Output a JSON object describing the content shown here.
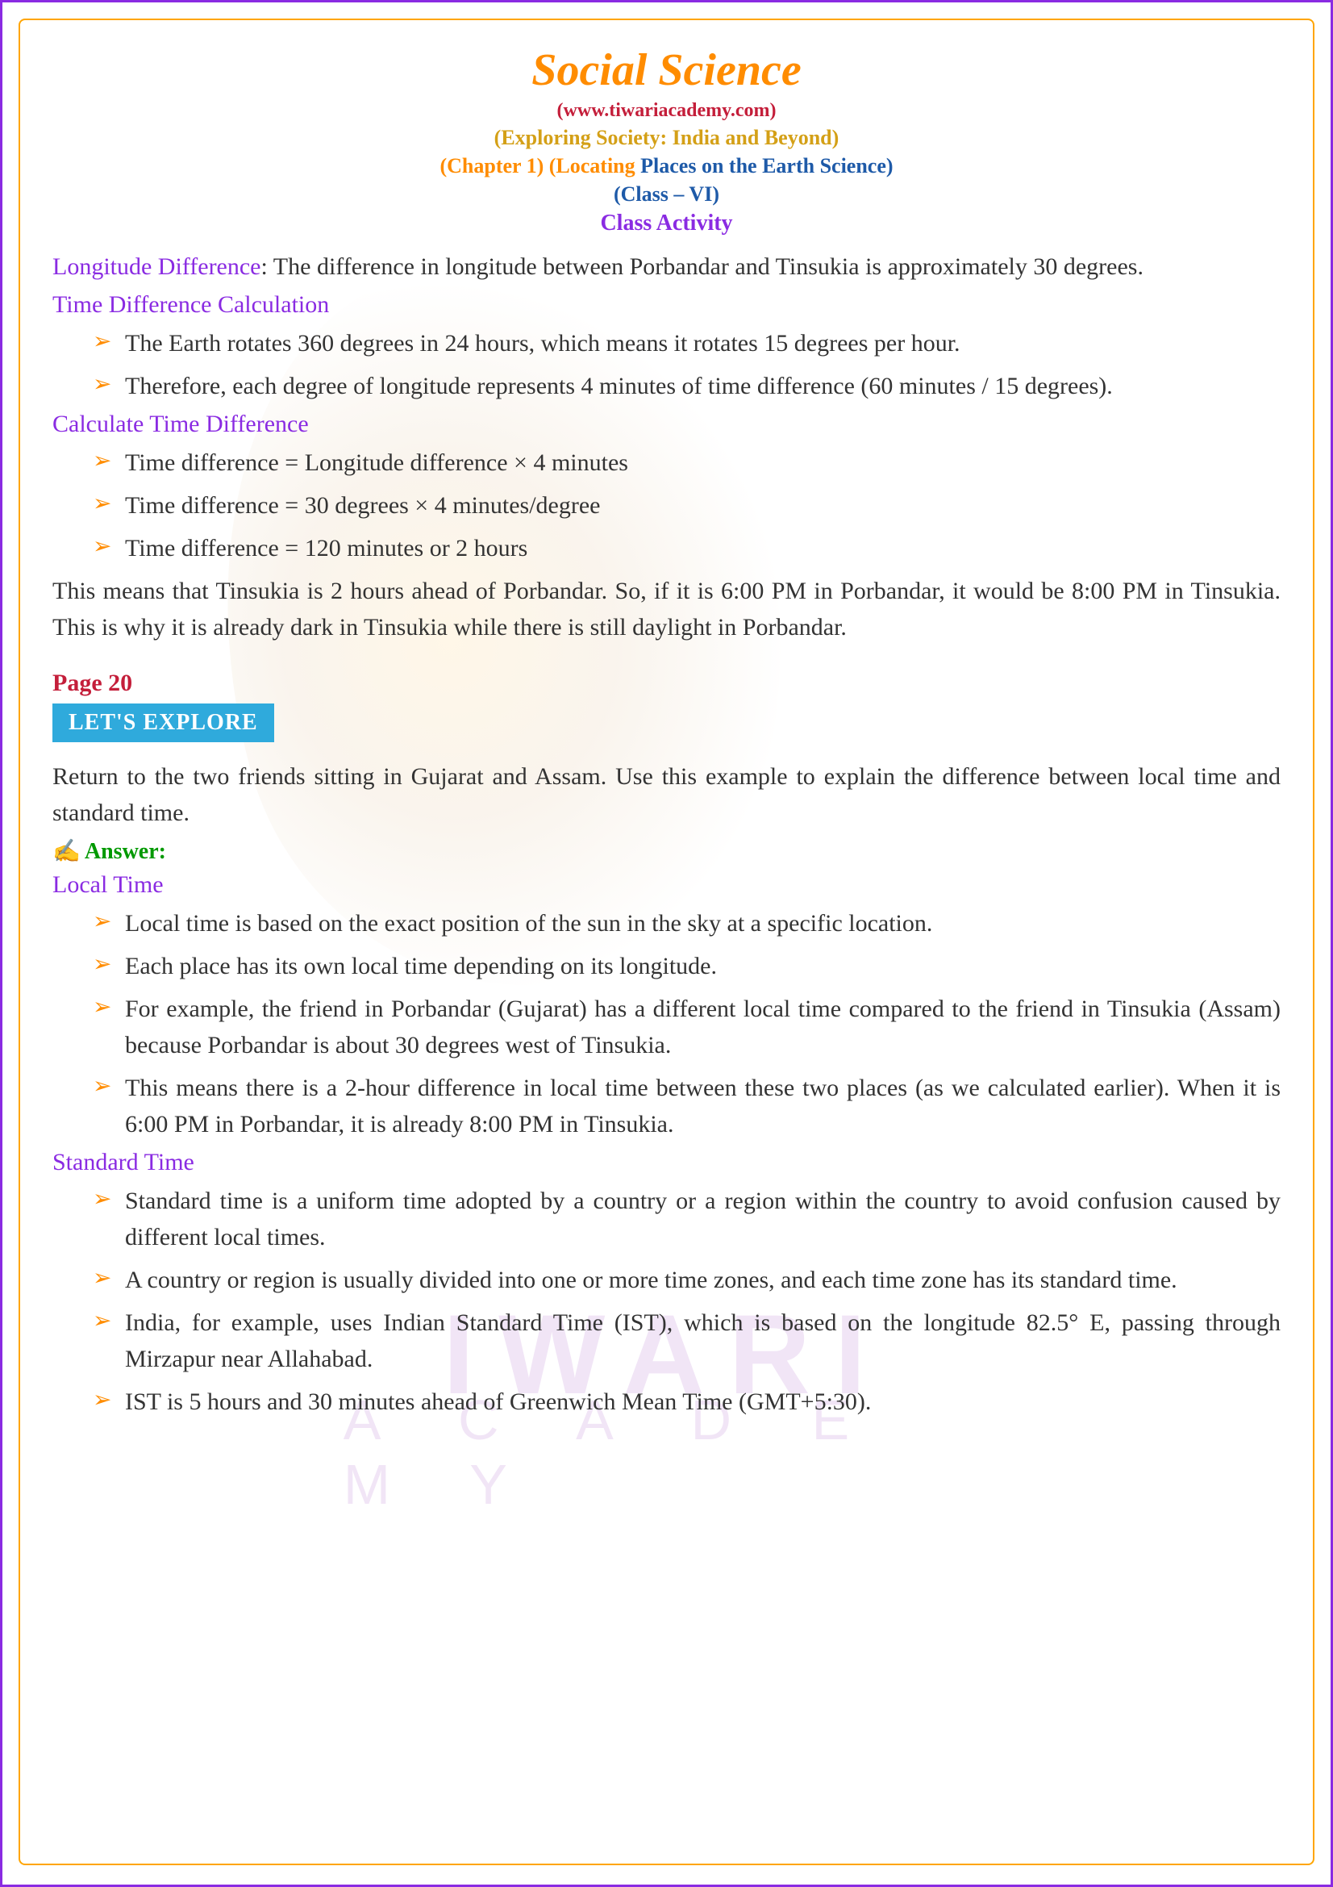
{
  "header": {
    "title": "Social Science",
    "website": "(www.tiwariacademy.com)",
    "subtitle1": "(Exploring Society: India and Beyond)",
    "subtitle2_part1": "(Chapter 1) (Locating ",
    "subtitle2_part2": "Places on the Earth Science)",
    "class_label": "(Class – VI)",
    "activity_label": "Class Activity"
  },
  "section1": {
    "intro_heading": "Longitude Difference",
    "intro_text": ": The difference in longitude between Porbandar and Tinsukia is approximately 30 degrees.",
    "heading1": "Time Difference Calculation",
    "bullets1": [
      "The Earth rotates 360 degrees in 24 hours, which means it rotates 15 degrees per hour.",
      "Therefore, each degree of longitude represents 4 minutes of time difference (60 minutes / 15 degrees)."
    ],
    "heading2": "Calculate Time Difference",
    "bullets2": [
      "Time difference = Longitude difference × 4 minutes",
      "Time difference = 30 degrees × 4 minutes/degree",
      "Time difference = 120 minutes or 2 hours"
    ],
    "conclusion": "This means that Tinsukia is 2 hours ahead of Porbandar. So, if it is 6:00 PM in Porbandar, it would be 8:00 PM in Tinsukia. This is why it is already dark in Tinsukia while there is still daylight in Porbandar."
  },
  "section2": {
    "page_label": "Page 20",
    "explore_label": "LET'S EXPLORE",
    "question": "Return to the two friends sitting in Gujarat and Assam. Use this example to explain the difference between local time and standard time.",
    "answer_label": "Answer:",
    "heading1": "Local Time",
    "bullets1": [
      "Local time is based on the exact position of the sun in the sky at a specific location.",
      "Each place has its own local time depending on its longitude.",
      "For example, the friend in Porbandar (Gujarat) has a different local time compared to the friend in Tinsukia (Assam) because Porbandar is about 30 degrees west of Tinsukia.",
      "This means there is a 2-hour difference in local time between these two places (as we calculated earlier). When it is 6:00 PM in Porbandar, it is already 8:00 PM in Tinsukia."
    ],
    "heading2": "Standard Time",
    "bullets2": [
      "Standard time is a uniform time adopted by a country or a region within the country to avoid confusion caused by different local times.",
      "A country or region is usually divided into one or more time zones, and each time zone has its standard time.",
      "India, for example, uses Indian Standard Time (IST), which is based on the longitude 82.5° E, passing through Mirzapur near Allahabad.",
      "IST is 5 hours and 30 minutes ahead of Greenwich Mean Time (GMT+5:30)."
    ]
  },
  "watermark": {
    "main": "IWARI",
    "sub": "A C A D E M Y"
  },
  "colors": {
    "title": "#ff8c00",
    "website": "#c41e3a",
    "subtitle_gold": "#d4a017",
    "subtitle_blue": "#1e5aa8",
    "activity": "#8a2be2",
    "heading": "#8a2be2",
    "bullet_arrow": "#ff8c00",
    "page_label": "#c41e3a",
    "explore_bg": "#2faadc",
    "answer": "#009900",
    "body_text": "#333333",
    "outer_border": "#8a2be2",
    "inner_border": "#ffa500"
  }
}
